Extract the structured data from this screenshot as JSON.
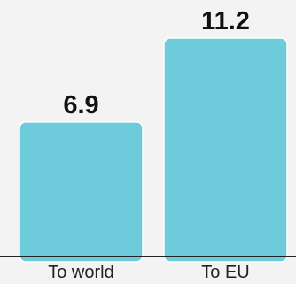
{
  "chart_data": {
    "type": "bar",
    "categories": [
      "To world",
      "To EU"
    ],
    "values": [
      6.9,
      11.2
    ],
    "value_labels": [
      "6.9",
      "11.2"
    ],
    "title": "",
    "xlabel": "",
    "ylabel": "",
    "ylim": [
      0,
      11.2
    ],
    "grid": false,
    "legend": "none"
  },
  "colors": {
    "bar": "#6dcbdc",
    "bar_edge": "#ffffff",
    "axis": "#222222",
    "background": "#f3f3f3"
  }
}
